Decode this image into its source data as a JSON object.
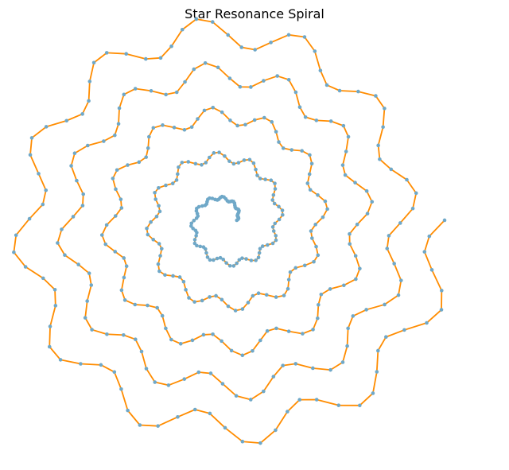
{
  "chart_data": {
    "type": "line",
    "title": "Star Resonance Spiral",
    "xlabel": "",
    "ylabel": "",
    "axes_visible": false,
    "grid": false,
    "line_color": "#ff8c00",
    "marker_color": "#6fa8c8",
    "spiral": {
      "points": 400,
      "turns": 5,
      "theta_start": 0,
      "theta_end": 31.416,
      "radius_min": 0.5,
      "radius_max": 10,
      "jagged_amplitude": 0.08,
      "jagged_frequency": 12
    },
    "xlim": [
      -11.5,
      11.5
    ],
    "ylim": [
      -11.0,
      11.0
    ]
  }
}
